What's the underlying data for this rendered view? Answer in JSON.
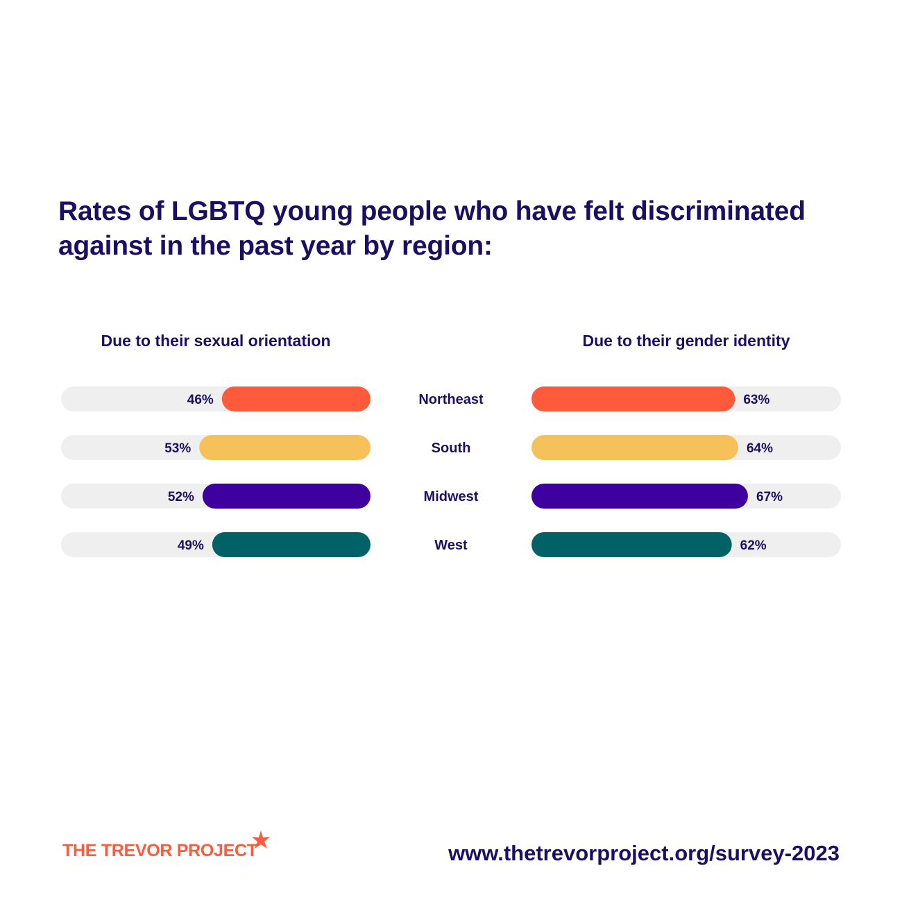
{
  "title": "Rates of LGBTQ young people who have felt discriminated against in the past year by region:",
  "colors": {
    "text": "#1c0f61",
    "track": "#efefef",
    "brand": "#ff5a3c",
    "Northeast": "#ff5a3c",
    "South": "#f7c159",
    "Midwest": "#3f00a0",
    "West": "#006266"
  },
  "chart_data": [
    {
      "type": "bar",
      "title": "Due to their sexual orientation",
      "orientation": "horizontal",
      "direction": "right-to-left",
      "categories": [
        "Northeast",
        "South",
        "Midwest",
        "West"
      ],
      "values": [
        46,
        53,
        52,
        49
      ],
      "value_labels": [
        "46%",
        "53%",
        "52%",
        "49%"
      ],
      "xlim": [
        0,
        100
      ],
      "grid": false
    },
    {
      "type": "bar",
      "title": "Due to their gender identity",
      "orientation": "horizontal",
      "direction": "left-to-right",
      "categories": [
        "Northeast",
        "South",
        "Midwest",
        "West"
      ],
      "values": [
        63,
        64,
        67,
        62
      ],
      "value_labels": [
        "63%",
        "64%",
        "67%",
        "62%"
      ],
      "xlim": [
        0,
        100
      ],
      "grid": false
    }
  ],
  "footer": {
    "brand": "THE TREVOR PROJECT",
    "url": "www.thetrevorproject.org/survey-2023"
  }
}
